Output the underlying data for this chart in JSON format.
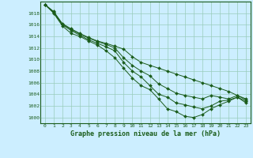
{
  "title": "Graphe pression niveau de la mer (hPa)",
  "background_color": "#cceeff",
  "plot_bg_color": "#cceeff",
  "grid_color": "#99ccbb",
  "line_color": "#1a5c1a",
  "marker_color": "#1a5c1a",
  "xlim": [
    -0.5,
    23.5
  ],
  "ylim": [
    999,
    1020
  ],
  "xticks": [
    0,
    1,
    2,
    3,
    4,
    5,
    6,
    7,
    8,
    9,
    10,
    11,
    12,
    13,
    14,
    15,
    16,
    17,
    18,
    19,
    20,
    21,
    22,
    23
  ],
  "yticks": [
    1000,
    1002,
    1004,
    1006,
    1008,
    1010,
    1012,
    1014,
    1016,
    1018
  ],
  "series": [
    [
      1019.5,
      1018.3,
      1016.2,
      1015.3,
      1014.5,
      1013.8,
      1013.2,
      1012.8,
      1012.3,
      1011.8,
      1010.5,
      1009.5,
      1009.0,
      1008.5,
      1008.0,
      1007.5,
      1007.0,
      1006.5,
      1006.0,
      1005.5,
      1005.0,
      1004.5,
      1003.8,
      1003.2
    ],
    [
      1019.5,
      1018.2,
      1016.1,
      1015.2,
      1014.4,
      1013.7,
      1013.1,
      1012.6,
      1012.0,
      1010.3,
      1009.0,
      1008.0,
      1007.2,
      1005.8,
      1005.0,
      1004.2,
      1003.8,
      1003.5,
      1003.2,
      1003.8,
      1003.5,
      1003.2,
      1003.8,
      1003.0
    ],
    [
      1019.5,
      1018.1,
      1016.0,
      1015.0,
      1014.2,
      1013.4,
      1012.8,
      1012.2,
      1011.5,
      1009.5,
      1008.0,
      1007.0,
      1005.5,
      1004.0,
      1003.5,
      1002.5,
      1002.2,
      1001.8,
      1001.5,
      1002.0,
      1002.8,
      1003.0,
      1003.5,
      1002.8
    ],
    [
      1019.5,
      1018.0,
      1015.8,
      1014.5,
      1014.0,
      1013.2,
      1012.5,
      1011.5,
      1010.3,
      1008.5,
      1006.8,
      1005.5,
      1004.8,
      1003.2,
      1001.5,
      1001.0,
      1000.2,
      1000.0,
      1000.5,
      1001.5,
      1002.2,
      1002.8,
      1003.5,
      1002.5
    ]
  ]
}
